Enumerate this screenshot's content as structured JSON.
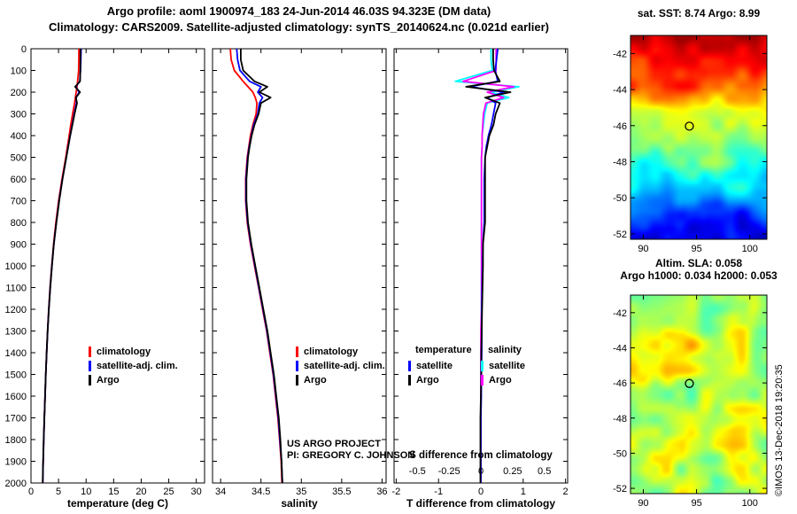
{
  "titles": {
    "line1": "Argo profile: aoml 1900974_183 24-Jun-2014 46.03S 94.323E (DM data)",
    "line2": "Climatology: CARS2009. Satellite-adjusted climatology: synTS_20140624.nc (0.021d earlier)"
  },
  "annotations": {
    "project_line1": "US ARGO PROJECT",
    "project_line2": "PI: GREGORY C. JOHNSON",
    "watermark": "©IMOS 13-Dec-2018 19:20:35"
  },
  "chart_data": [
    {
      "type": "line",
      "panel": "temperature-profile",
      "xlabel": "temperature (deg C)",
      "xlim": [
        0,
        31.5
      ],
      "xticks": [
        0,
        5,
        10,
        15,
        20,
        25,
        30
      ],
      "depth_lim": [
        0,
        2000
      ],
      "depth_ticks": [
        0,
        100,
        200,
        300,
        400,
        500,
        600,
        700,
        800,
        900,
        1000,
        1100,
        1200,
        1300,
        1400,
        1500,
        1600,
        1700,
        1800,
        1900,
        2000
      ],
      "depths": [
        0,
        50,
        100,
        150,
        175,
        200,
        225,
        250,
        300,
        350,
        400,
        450,
        500,
        600,
        700,
        800,
        900,
        1000,
        1100,
        1200,
        1300,
        1400,
        1500,
        1600,
        1700,
        1800,
        1900,
        1950,
        2000
      ],
      "series": [
        {
          "name": "climatology",
          "color": "#ff0000",
          "values": [
            8.7,
            8.68,
            8.64,
            8.45,
            8.35,
            8.2,
            8.05,
            7.9,
            7.55,
            7.22,
            6.92,
            6.62,
            6.32,
            5.62,
            5.02,
            4.52,
            4.1,
            3.76,
            3.46,
            3.21,
            3.0,
            2.83,
            2.68,
            2.55,
            2.43,
            2.31,
            2.21,
            2.17,
            2.13
          ]
        },
        {
          "name": "satellite-adj. clim.",
          "color": "#0000ff",
          "values": [
            9.1,
            9.05,
            8.98,
            8.85,
            8.1,
            8.75,
            8.2,
            8.25,
            7.85,
            7.47,
            7.1,
            6.75,
            6.42,
            5.7,
            5.1,
            4.6,
            4.15,
            3.8,
            3.49,
            3.23,
            3.02,
            2.85,
            2.69,
            2.56,
            2.43,
            2.31,
            2.21,
            2.17,
            2.13
          ]
        },
        {
          "name": "Argo",
          "color": "#000000",
          "values": [
            8.99,
            8.97,
            8.95,
            8.9,
            8.0,
            8.9,
            8.15,
            8.35,
            7.9,
            7.52,
            7.12,
            6.77,
            6.42,
            5.72,
            5.12,
            4.62,
            4.15,
            3.81,
            3.5,
            3.24,
            3.02,
            2.84,
            2.69,
            2.55,
            2.42,
            2.3,
            2.2,
            2.16,
            2.12
          ]
        }
      ],
      "legend": [
        {
          "label": "climatology",
          "color": "#ff0000"
        },
        {
          "label": "satellite-adj. clim.",
          "color": "#0000ff"
        },
        {
          "label": "Argo",
          "color": "#000000"
        }
      ]
    },
    {
      "type": "line",
      "panel": "salinity-profile",
      "xlabel": "salinity",
      "xlim": [
        33.9,
        36.05
      ],
      "xticks": [
        34,
        34.5,
        35,
        35.5,
        36
      ],
      "depth_lim": [
        0,
        2000
      ],
      "depth_ticks": [
        0,
        100,
        200,
        300,
        400,
        500,
        600,
        700,
        800,
        900,
        1000,
        1100,
        1200,
        1300,
        1400,
        1500,
        1600,
        1700,
        1800,
        1900,
        2000
      ],
      "depths": [
        0,
        50,
        100,
        150,
        175,
        200,
        225,
        250,
        300,
        350,
        400,
        450,
        500,
        600,
        700,
        800,
        900,
        1000,
        1100,
        1200,
        1300,
        1400,
        1500,
        1600,
        1700,
        1800,
        1900,
        1950,
        2000
      ],
      "series": [
        {
          "name": "climatology",
          "color": "#ff0000",
          "values": [
            34.12,
            34.13,
            34.17,
            34.28,
            34.34,
            34.4,
            34.43,
            34.45,
            34.44,
            34.4,
            34.37,
            34.35,
            34.33,
            34.31,
            34.31,
            34.33,
            34.37,
            34.42,
            34.47,
            34.52,
            34.57,
            34.61,
            34.65,
            34.68,
            34.71,
            34.73,
            34.75,
            34.755,
            34.76
          ]
        },
        {
          "name": "satellite-adj. clim.",
          "color": "#0000ff",
          "values": [
            34.2,
            34.21,
            34.24,
            34.36,
            34.5,
            34.46,
            34.52,
            34.48,
            34.46,
            34.41,
            34.38,
            34.355,
            34.335,
            34.315,
            34.315,
            34.335,
            34.375,
            34.425,
            34.475,
            34.525,
            34.575,
            34.615,
            34.655,
            34.685,
            34.715,
            34.735,
            34.755,
            34.76,
            34.765
          ]
        },
        {
          "name": "Argo",
          "color": "#000000",
          "values": [
            34.25,
            34.25,
            34.28,
            34.42,
            34.58,
            34.48,
            34.62,
            34.5,
            34.47,
            34.42,
            34.385,
            34.36,
            34.34,
            34.32,
            34.32,
            34.34,
            34.38,
            34.43,
            34.48,
            34.53,
            34.58,
            34.62,
            34.66,
            34.69,
            34.72,
            34.74,
            34.755,
            34.76,
            34.765
          ]
        }
      ],
      "legend": [
        {
          "label": "climatology",
          "color": "#ff0000"
        },
        {
          "label": "satellite-adj. clim.",
          "color": "#0000ff"
        },
        {
          "label": "Argo",
          "color": "#000000"
        }
      ]
    },
    {
      "type": "line",
      "panel": "difference-profile",
      "xlabel": "T difference from climatology",
      "xlabel2": "S difference from climatology",
      "xlim": [
        -2.05,
        2.05
      ],
      "xticks": [
        -2,
        -1,
        0,
        1,
        2
      ],
      "s_axis": {
        "scale": 3,
        "ticks": [
          -0.5,
          -0.25,
          0,
          0.25,
          0.5
        ],
        "tick_labels": [
          "-0.5",
          "-0.25",
          "0",
          "0.25",
          "0.5"
        ]
      },
      "depth_lim": [
        0,
        2000
      ],
      "depth_ticks": [
        0,
        100,
        200,
        300,
        400,
        500,
        600,
        700,
        800,
        900,
        1000,
        1100,
        1200,
        1300,
        1400,
        1500,
        1600,
        1700,
        1800,
        1900,
        2000
      ],
      "depths": [
        0,
        50,
        100,
        150,
        175,
        200,
        225,
        250,
        300,
        350,
        400,
        450,
        500,
        600,
        700,
        800,
        900,
        1000,
        1100,
        1200,
        1300,
        1400,
        1500,
        1600,
        1700,
        1800,
        1900,
        1950,
        2000
      ],
      "series": [
        {
          "name": "salinity satellite",
          "legend": "satellite",
          "group": "salinity",
          "color": "#00ffff",
          "units": "S",
          "values": [
            0.08,
            0.08,
            0.09,
            -0.2,
            0.3,
            0.08,
            0.22,
            0.05,
            0.03,
            0.02,
            0.01,
            0.01,
            0.005,
            0.005,
            0.005,
            0.005,
            0.005,
            0.005,
            0.005,
            0.005,
            0.005,
            0.0,
            0.0,
            0.0,
            0.0,
            0.0,
            0.0,
            0.0,
            0.0
          ]
        },
        {
          "name": "salinity Argo",
          "legend": "Argo",
          "group": "salinity",
          "color": "#ff00ff",
          "units": "S",
          "values": [
            0.12,
            0.12,
            0.12,
            -0.14,
            0.26,
            0.05,
            0.18,
            0.04,
            0.02,
            0.015,
            0.01,
            0.01,
            0.005,
            0.005,
            0.005,
            0.005,
            0.005,
            0.005,
            0.005,
            0.005,
            0.0,
            0.0,
            0.0,
            0.0,
            0.0,
            0.0,
            0.0,
            0.0,
            0.0
          ]
        },
        {
          "name": "temperature satellite",
          "legend": "satellite",
          "group": "temperature",
          "color": "#0000ff",
          "units": "T",
          "values": [
            0.4,
            0.37,
            0.34,
            0.4,
            -0.25,
            0.55,
            0.15,
            0.35,
            0.3,
            0.25,
            0.18,
            0.13,
            0.1,
            0.08,
            0.08,
            0.08,
            0.05,
            0.04,
            0.03,
            0.02,
            0.02,
            0.02,
            0.01,
            0.01,
            0.0,
            0.0,
            0.0,
            0.0,
            0.0
          ]
        },
        {
          "name": "temperature Argo",
          "legend": "Argo",
          "group": "temperature",
          "color": "#000000",
          "units": "T",
          "values": [
            0.29,
            0.29,
            0.31,
            0.45,
            -0.35,
            0.7,
            0.1,
            0.45,
            0.35,
            0.3,
            0.2,
            0.15,
            0.1,
            0.1,
            0.1,
            0.1,
            0.05,
            0.05,
            0.04,
            0.03,
            0.02,
            0.01,
            0.01,
            0.0,
            -0.01,
            -0.01,
            -0.01,
            -0.01,
            -0.01
          ]
        }
      ],
      "legend": {
        "columns": [
          {
            "header": "temperature",
            "entries": [
              {
                "label": "satellite",
                "color": "#0000ff"
              },
              {
                "label": "Argo",
                "color": "#000000"
              }
            ]
          },
          {
            "header": "salinity",
            "entries": [
              {
                "label": "satellite",
                "color": "#00ffff"
              },
              {
                "label": "Argo",
                "color": "#ff00ff"
              }
            ]
          }
        ]
      }
    },
    {
      "type": "heatmap",
      "panel": "sst-map",
      "title": "sat. SST: 8.74 Argo: 8.99",
      "field": "sea surface temperature",
      "colormap": "jet",
      "xlim": [
        88.8,
        101.6
      ],
      "ylim": [
        -52.3,
        -41
      ],
      "xticks": [
        90,
        95,
        100
      ],
      "yticks": [
        -42,
        -44,
        -46,
        -48,
        -50,
        -52
      ],
      "marker": {
        "lon": 94.323,
        "lat": -46.03
      },
      "noise": {
        "seed": 11,
        "amp1": 0.07,
        "amp2": 0.05
      },
      "base_stops": [
        [
          0,
          0.93
        ],
        [
          0.25,
          0.8
        ],
        [
          0.36,
          0.64
        ],
        [
          0.45,
          0.55
        ],
        [
          0.6,
          0.45
        ],
        [
          0.75,
          0.33
        ],
        [
          0.88,
          0.18
        ],
        [
          1,
          0.1
        ]
      ]
    },
    {
      "type": "heatmap",
      "panel": "sla-map",
      "title_line1": "Altim. SLA: 0.058",
      "title_line2": "Argo h1000: 0.034 h2000: 0.053",
      "field": "sea level anomaly",
      "colormap": "jet",
      "xlim": [
        88.8,
        101.6
      ],
      "ylim": [
        -52.3,
        -41
      ],
      "xticks": [
        90,
        95,
        100
      ],
      "yticks": [
        -42,
        -44,
        -46,
        -48,
        -50,
        -52
      ],
      "marker": {
        "lon": 94.323,
        "lat": -46.03
      },
      "noise": {
        "seed": 29,
        "amp1": 0.12,
        "amp2": 0.06
      },
      "base_stops": [
        [
          0,
          0.58
        ],
        [
          1,
          0.58
        ]
      ]
    }
  ]
}
